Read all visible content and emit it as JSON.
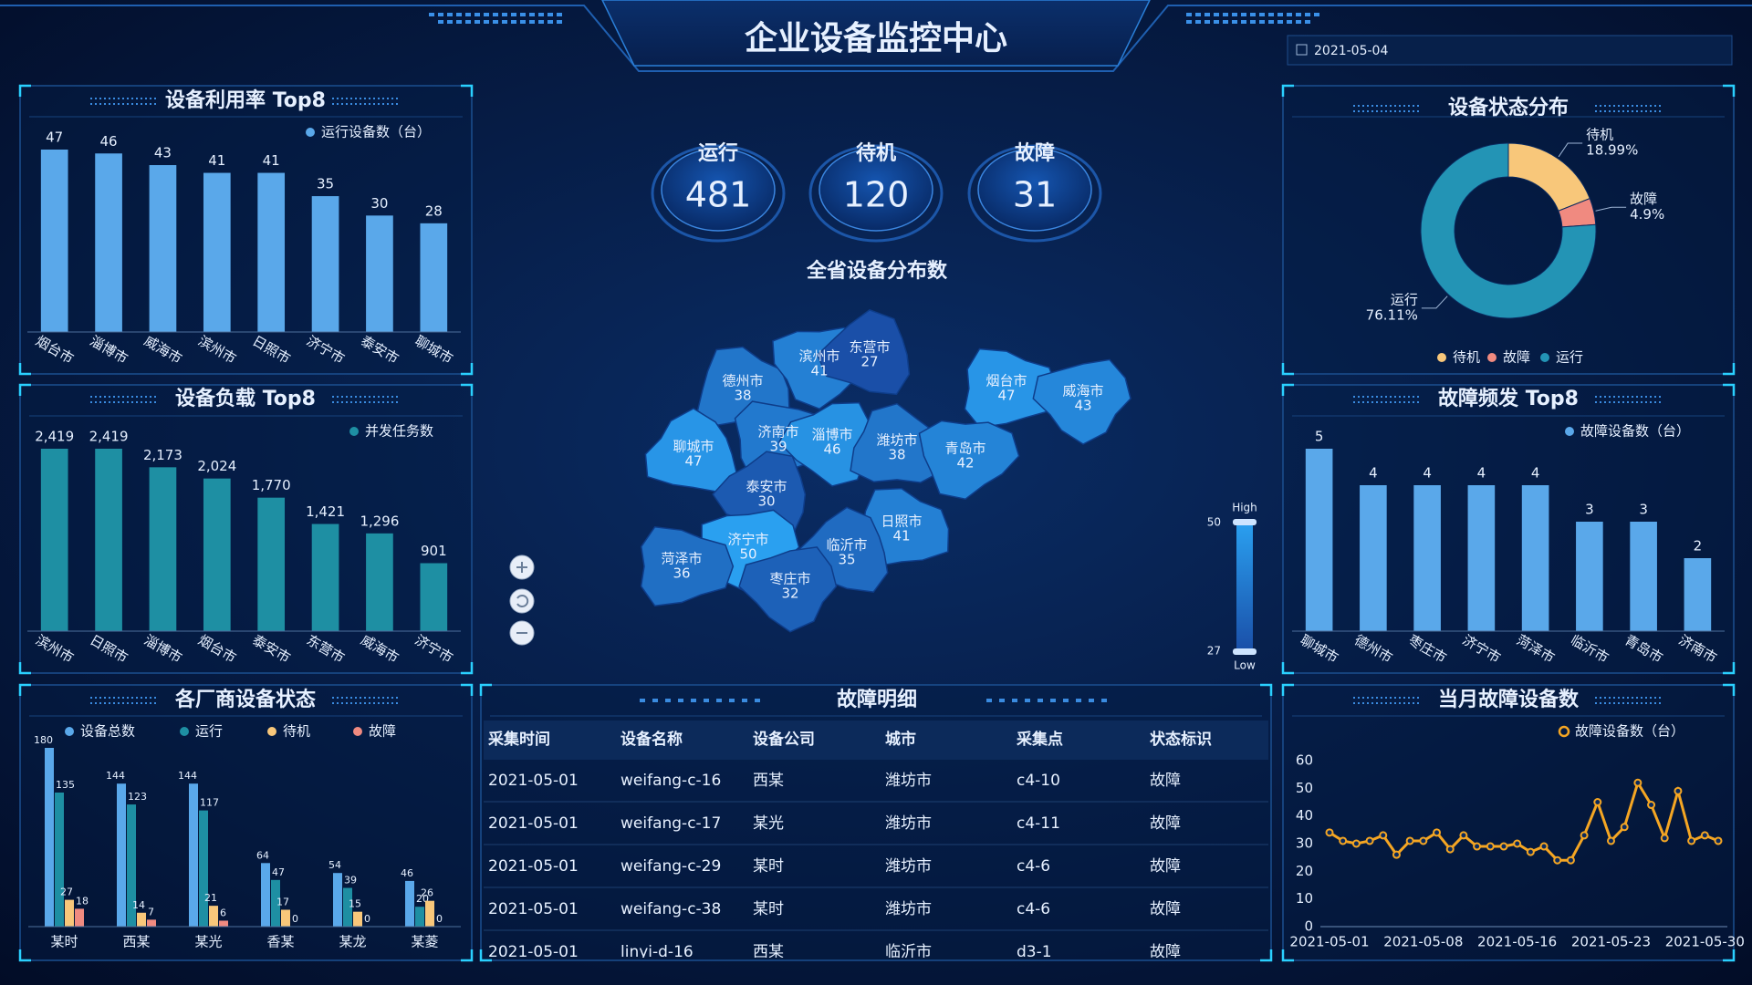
{
  "header": {
    "title": "企业设备监控中心",
    "date": "2021-05-04"
  },
  "stats": [
    {
      "label": "运行",
      "value": 481,
      "color": "#3fd3e6"
    },
    {
      "label": "待机",
      "value": 120,
      "color": "#f8c77a"
    },
    {
      "label": "故障",
      "value": 31,
      "color": "#f08a80"
    }
  ],
  "map": {
    "title": "全省设备分布数",
    "regions": [
      {
        "name": "德州市",
        "value": 38
      },
      {
        "name": "滨州市",
        "value": 41
      },
      {
        "name": "东营市",
        "value": 27
      },
      {
        "name": "烟台市",
        "value": 47
      },
      {
        "name": "威海市",
        "value": 43
      },
      {
        "name": "聊城市",
        "value": 47
      },
      {
        "name": "济南市",
        "value": 39
      },
      {
        "name": "淄博市",
        "value": 46
      },
      {
        "name": "潍坊市",
        "value": 38
      },
      {
        "name": "青岛市",
        "value": 42
      },
      {
        "name": "泰安市",
        "value": 30
      },
      {
        "name": "日照市",
        "value": 41
      },
      {
        "name": "济宁市",
        "value": 50
      },
      {
        "name": "临沂市",
        "value": 35
      },
      {
        "name": "菏泽市",
        "value": 36
      },
      {
        "name": "枣庄市",
        "value": 32
      }
    ],
    "visual_map": {
      "max": 50,
      "min": 27,
      "high": "High",
      "low": "Low",
      "colors": [
        "#1a4fa8",
        "#2aa0f0"
      ]
    }
  },
  "table": {
    "title": "故障明细",
    "columns": [
      "采集时间",
      "设备名称",
      "设备公司",
      "城市",
      "采集点",
      "状态标识"
    ],
    "rows": [
      [
        "2021-05-01",
        "weifang-c-16",
        "西某",
        "潍坊市",
        "c4-10",
        "故障"
      ],
      [
        "2021-05-01",
        "weifang-c-17",
        "某光",
        "潍坊市",
        "c4-11",
        "故障"
      ],
      [
        "2021-05-01",
        "weifang-c-29",
        "某时",
        "潍坊市",
        "c4-6",
        "故障"
      ],
      [
        "2021-05-01",
        "weifang-c-38",
        "某时",
        "潍坊市",
        "c4-6",
        "故障"
      ],
      [
        "2021-05-01",
        "linyi-d-16",
        "西某",
        "临沂市",
        "d3-1",
        "故障"
      ]
    ]
  },
  "chart_data": [
    {
      "type": "bar",
      "title": "设备利用率 Top8",
      "categories": [
        "烟台市",
        "淄博市",
        "威海市",
        "滨州市",
        "日照市",
        "济宁市",
        "泰安市",
        "聊城市"
      ],
      "series": [
        {
          "name": "运行设备数（台）",
          "color": "#5aa8ea",
          "values": [
            47,
            46,
            43,
            41,
            41,
            35,
            30,
            28
          ]
        }
      ]
    },
    {
      "type": "bar",
      "title": "设备负载 Top8",
      "categories": [
        "滨州市",
        "日照市",
        "淄博市",
        "烟台市",
        "泰安市",
        "东营市",
        "威海市",
        "济宁市"
      ],
      "series": [
        {
          "name": "并发任务数",
          "color": "#1e8fa3",
          "values": [
            2419,
            2419,
            2173,
            2024,
            1770,
            1421,
            1296,
            901
          ],
          "value_labels": [
            "2,419",
            "2,419",
            "2,173",
            "2,024",
            "1,770",
            "1,421",
            "1,296",
            "901"
          ]
        }
      ]
    },
    {
      "type": "bar",
      "title": "各厂商设备状态",
      "categories": [
        "某时",
        "西某",
        "某光",
        "香某",
        "某龙",
        "某菱"
      ],
      "series": [
        {
          "name": "设备总数",
          "color": "#5aa8ea",
          "values": [
            180,
            144,
            144,
            64,
            54,
            46
          ]
        },
        {
          "name": "运行",
          "color": "#1e8fa3",
          "values": [
            135,
            123,
            117,
            47,
            39,
            20
          ]
        },
        {
          "name": "待机",
          "color": "#f8c77a",
          "values": [
            27,
            14,
            21,
            17,
            15,
            26
          ]
        },
        {
          "name": "故障",
          "color": "#f08a80",
          "values": [
            18,
            7,
            6,
            0,
            0,
            0
          ]
        }
      ]
    },
    {
      "type": "pie",
      "title": "设备状态分布",
      "categories": [
        "待机",
        "故障",
        "运行"
      ],
      "values": [
        18.99,
        4.9,
        76.11
      ],
      "value_labels": [
        "18.99%",
        "4.9%",
        "76.11%"
      ],
      "colors": [
        "#f8c77a",
        "#f08a80",
        "#2394b5"
      ]
    },
    {
      "type": "bar",
      "title": "故障频发 Top8",
      "categories": [
        "聊城市",
        "德州市",
        "枣庄市",
        "济宁市",
        "菏泽市",
        "临沂市",
        "青岛市",
        "济南市"
      ],
      "series": [
        {
          "name": "故障设备数（台）",
          "color": "#5aa8ea",
          "values": [
            5,
            4,
            4,
            4,
            4,
            3,
            3,
            2
          ]
        }
      ]
    },
    {
      "type": "line",
      "title": "当月故障设备数",
      "categories": [
        "2021-05-01",
        null,
        null,
        null,
        null,
        null,
        null,
        "2021-05-08",
        null,
        null,
        null,
        null,
        null,
        null,
        "2021-05-16",
        null,
        null,
        null,
        null,
        null,
        null,
        "2021-05-23",
        null,
        null,
        null,
        null,
        null,
        null,
        "2021-05-30",
        null
      ],
      "series": [
        {
          "name": "故障设备数（台）",
          "color": "#f5a623",
          "values": [
            34,
            31,
            30,
            31,
            33,
            26,
            31,
            31,
            34,
            28,
            33,
            29,
            29,
            29,
            30,
            27,
            29,
            24,
            24,
            33,
            45,
            31,
            36,
            52,
            44,
            32,
            49,
            31,
            33,
            31
          ]
        }
      ],
      "ylim": [
        0,
        60
      ],
      "yticks": [
        0,
        10,
        20,
        30,
        40,
        50,
        60
      ],
      "grid": false
    }
  ]
}
